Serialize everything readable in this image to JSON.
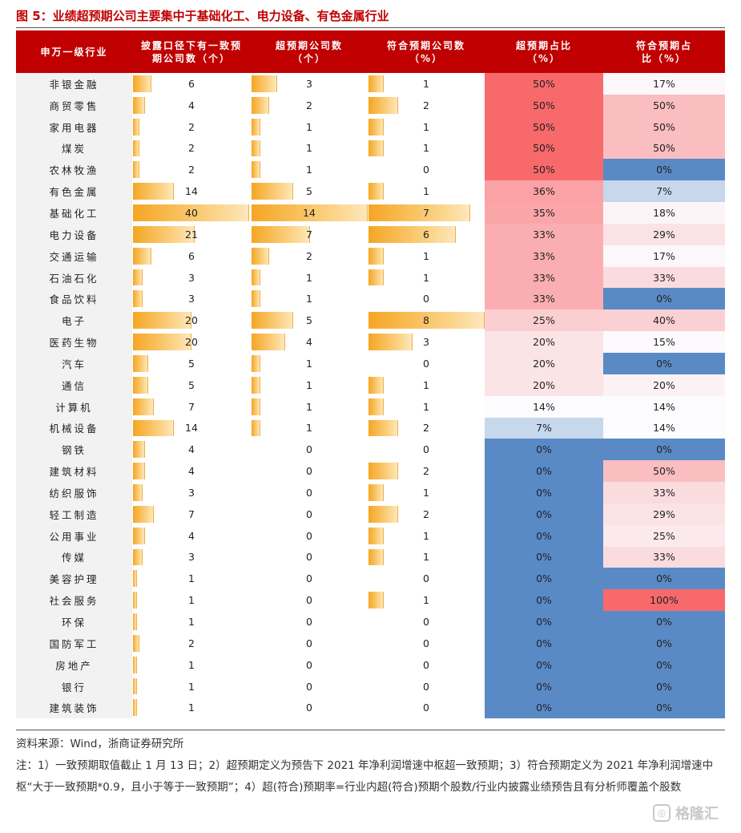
{
  "title": "图 5：业绩超预期公司主要集中于基础化工、电力设备、有色金属行业",
  "headers": {
    "industry": "申万一级行业",
    "disclosed": "披露口径下有一致预期公司数（个）",
    "beat": "超预期公司数（个）",
    "meet": "符合预期公司数（%）",
    "beat_pct": "超预期占比（%）",
    "meet_pct": "符合预期占比（%）"
  },
  "colors": {
    "header_bg": "#c00000",
    "heat_red_strong": "#f8696b",
    "heat_blue_strong": "#5a8ac6",
    "bar_orange": "#f5a623"
  },
  "chart_data": {
    "type": "table",
    "columns": [
      "申万一级行业",
      "披露口径下有一致预期公司数（个）",
      "超预期公司数（个）",
      "符合预期公司数（%）",
      "超预期占比（%）",
      "符合预期占比（%）"
    ],
    "rows": [
      {
        "industry": "非银金融",
        "disclosed": 6,
        "beat": 3,
        "meet": 1,
        "beat_pct": "50%",
        "meet_pct": "17%"
      },
      {
        "industry": "商贸零售",
        "disclosed": 4,
        "beat": 2,
        "meet": 2,
        "beat_pct": "50%",
        "meet_pct": "50%"
      },
      {
        "industry": "家用电器",
        "disclosed": 2,
        "beat": 1,
        "meet": 1,
        "beat_pct": "50%",
        "meet_pct": "50%"
      },
      {
        "industry": "煤炭",
        "disclosed": 2,
        "beat": 1,
        "meet": 1,
        "beat_pct": "50%",
        "meet_pct": "50%"
      },
      {
        "industry": "农林牧渔",
        "disclosed": 2,
        "beat": 1,
        "meet": 0,
        "beat_pct": "50%",
        "meet_pct": "0%"
      },
      {
        "industry": "有色金属",
        "disclosed": 14,
        "beat": 5,
        "meet": 1,
        "beat_pct": "36%",
        "meet_pct": "7%"
      },
      {
        "industry": "基础化工",
        "disclosed": 40,
        "beat": 14,
        "meet": 7,
        "beat_pct": "35%",
        "meet_pct": "18%"
      },
      {
        "industry": "电力设备",
        "disclosed": 21,
        "beat": 7,
        "meet": 6,
        "beat_pct": "33%",
        "meet_pct": "29%"
      },
      {
        "industry": "交通运输",
        "disclosed": 6,
        "beat": 2,
        "meet": 1,
        "beat_pct": "33%",
        "meet_pct": "17%"
      },
      {
        "industry": "石油石化",
        "disclosed": 3,
        "beat": 1,
        "meet": 1,
        "beat_pct": "33%",
        "meet_pct": "33%"
      },
      {
        "industry": "食品饮料",
        "disclosed": 3,
        "beat": 1,
        "meet": 0,
        "beat_pct": "33%",
        "meet_pct": "0%"
      },
      {
        "industry": "电子",
        "disclosed": 20,
        "beat": 5,
        "meet": 8,
        "beat_pct": "25%",
        "meet_pct": "40%"
      },
      {
        "industry": "医药生物",
        "disclosed": 20,
        "beat": 4,
        "meet": 3,
        "beat_pct": "20%",
        "meet_pct": "15%"
      },
      {
        "industry": "汽车",
        "disclosed": 5,
        "beat": 1,
        "meet": 0,
        "beat_pct": "20%",
        "meet_pct": "0%"
      },
      {
        "industry": "通信",
        "disclosed": 5,
        "beat": 1,
        "meet": 1,
        "beat_pct": "20%",
        "meet_pct": "20%"
      },
      {
        "industry": "计算机",
        "disclosed": 7,
        "beat": 1,
        "meet": 1,
        "beat_pct": "14%",
        "meet_pct": "14%"
      },
      {
        "industry": "机械设备",
        "disclosed": 14,
        "beat": 1,
        "meet": 2,
        "beat_pct": "7%",
        "meet_pct": "14%"
      },
      {
        "industry": "钢铁",
        "disclosed": 4,
        "beat": 0,
        "meet": 0,
        "beat_pct": "0%",
        "meet_pct": "0%"
      },
      {
        "industry": "建筑材料",
        "disclosed": 4,
        "beat": 0,
        "meet": 2,
        "beat_pct": "0%",
        "meet_pct": "50%"
      },
      {
        "industry": "纺织服饰",
        "disclosed": 3,
        "beat": 0,
        "meet": 1,
        "beat_pct": "0%",
        "meet_pct": "33%"
      },
      {
        "industry": "轻工制造",
        "disclosed": 7,
        "beat": 0,
        "meet": 2,
        "beat_pct": "0%",
        "meet_pct": "29%"
      },
      {
        "industry": "公用事业",
        "disclosed": 4,
        "beat": 0,
        "meet": 1,
        "beat_pct": "0%",
        "meet_pct": "25%"
      },
      {
        "industry": "传媒",
        "disclosed": 3,
        "beat": 0,
        "meet": 1,
        "beat_pct": "0%",
        "meet_pct": "33%"
      },
      {
        "industry": "美容护理",
        "disclosed": 1,
        "beat": 0,
        "meet": 0,
        "beat_pct": "0%",
        "meet_pct": "0%"
      },
      {
        "industry": "社会服务",
        "disclosed": 1,
        "beat": 0,
        "meet": 1,
        "beat_pct": "0%",
        "meet_pct": "100%"
      },
      {
        "industry": "环保",
        "disclosed": 1,
        "beat": 0,
        "meet": 0,
        "beat_pct": "0%",
        "meet_pct": "0%"
      },
      {
        "industry": "国防军工",
        "disclosed": 2,
        "beat": 0,
        "meet": 0,
        "beat_pct": "0%",
        "meet_pct": "0%"
      },
      {
        "industry": "房地产",
        "disclosed": 1,
        "beat": 0,
        "meet": 0,
        "beat_pct": "0%",
        "meet_pct": "0%"
      },
      {
        "industry": "银行",
        "disclosed": 1,
        "beat": 0,
        "meet": 0,
        "beat_pct": "0%",
        "meet_pct": "0%"
      },
      {
        "industry": "建筑装饰",
        "disclosed": 1,
        "beat": 0,
        "meet": 0,
        "beat_pct": "0%",
        "meet_pct": "0%"
      }
    ]
  },
  "source": "资料来源：Wind，浙商证券研究所",
  "note": "注：1）一致预期取值截止 1 月 13 日；2）超预期定义为预告下 2021 年净利润增速中枢超一致预期；3）符合预期定义为 2021 年净利润增速中枢“大于一致预期*0.9，且小于等于一致预期”；4）超(符合)预期率=行业内超(符合)预期个股数/行业内披露业绩预告且有分析师覆盖个股数",
  "watermark": {
    "icon": "gelonghui-logo-icon",
    "text": "格隆汇"
  }
}
